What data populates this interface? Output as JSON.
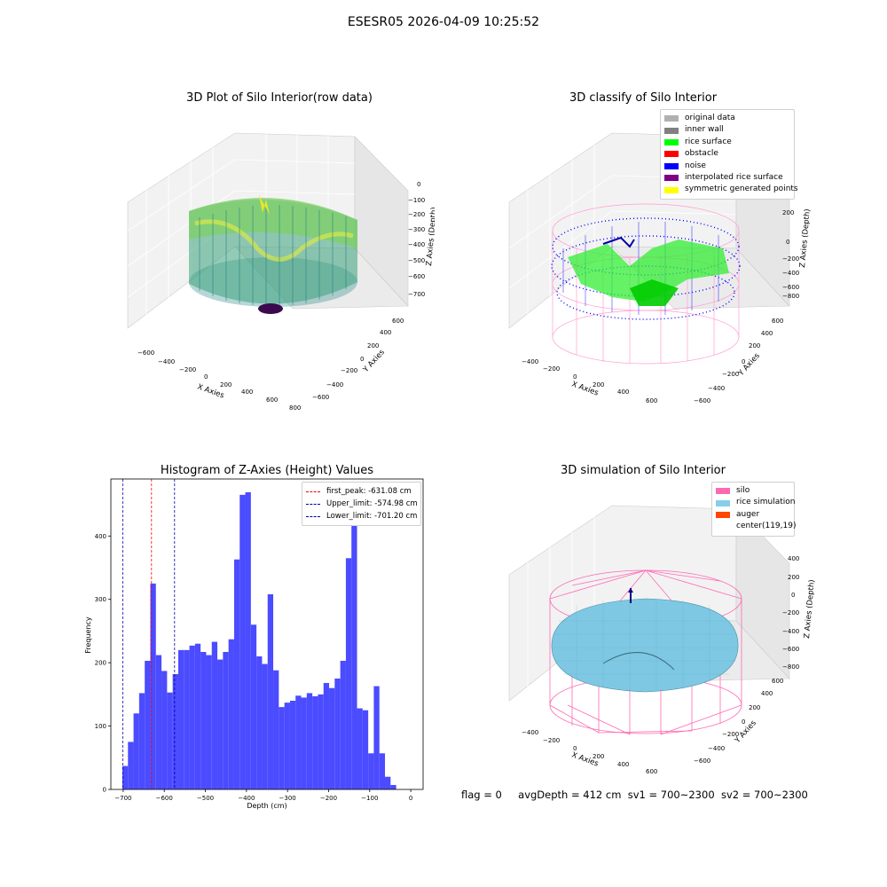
{
  "suptitle": "ESESR05 2026-04-09 10:25:52",
  "panels": {
    "raw": {
      "title": "3D Plot of Silo Interior(row data)",
      "x_label": "X Axies",
      "y_label": "Y Axies",
      "z_label": "Z Axies (Depth)",
      "x_ticks": [
        "−600",
        "−400",
        "−200",
        "0",
        "200",
        "400",
        "600",
        "800"
      ],
      "y_ticks": [
        "−600",
        "−400",
        "−200",
        "0",
        "200",
        "400",
        "600"
      ],
      "z_ticks": [
        "0",
        "−100",
        "−200",
        "−300",
        "−400",
        "−500",
        "−600",
        "−700"
      ]
    },
    "classify": {
      "title": "3D classify of Silo Interior",
      "x_label": "X Axies",
      "y_label": "Y Axies",
      "z_label": "Z Axies (Depth)",
      "x_ticks": [
        "−400",
        "−200",
        "0",
        "200",
        "400",
        "600"
      ],
      "y_ticks": [
        "−600",
        "−400",
        "−200",
        "0",
        "200",
        "400",
        "600"
      ],
      "z_ticks": [
        "200",
        "0",
        "−200",
        "−400",
        "−600",
        "−800"
      ],
      "legend": [
        {
          "label": "original data",
          "color": "#b0b0b0"
        },
        {
          "label": "inner wall",
          "color": "#808080"
        },
        {
          "label": "rice surface",
          "color": "#00ff00"
        },
        {
          "label": "obstacle",
          "color": "#ff0000"
        },
        {
          "label": "noise",
          "color": "#0000ff"
        },
        {
          "label": "interpolated rice surface",
          "color": "#800080"
        },
        {
          "label": "symmetric generated points",
          "color": "#ffff00"
        }
      ]
    },
    "histogram": {
      "title": "Histogram of Z-Axies (Height) Values",
      "x_label": "Depth (cm)",
      "y_label": "Frequency",
      "x_ticks": [
        "−700",
        "−600",
        "−500",
        "−400",
        "−300",
        "−200",
        "−100",
        "0"
      ],
      "y_ticks": [
        "0",
        "100",
        "200",
        "300",
        "400"
      ],
      "legend": [
        {
          "label": "first_peak: -631.08 cm",
          "color": "#ff0000"
        },
        {
          "label": "Upper_limit: -574.98 cm",
          "color": "#0000aa"
        },
        {
          "label": "Lower_limit: -701.20 cm",
          "color": "#0000aa"
        }
      ]
    },
    "simulation": {
      "title": "3D simulation of Silo Interior",
      "x_label": "X Axies",
      "y_label": "Y Axies",
      "z_label": "Z Axies (Depth)",
      "x_ticks": [
        "−400",
        "−200",
        "0",
        "200",
        "400",
        "600"
      ],
      "y_ticks": [
        "−600",
        "−400",
        "−200",
        "0",
        "200",
        "400",
        "600"
      ],
      "z_ticks": [
        "400",
        "200",
        "0",
        "−200",
        "−400",
        "−600",
        "−800"
      ],
      "legend": [
        {
          "label": "silo",
          "color": "#ff69b4"
        },
        {
          "label": "rice simulation",
          "color": "#87ceeb"
        },
        {
          "label": "auger",
          "color": "#ff4500"
        },
        {
          "label": "center(119,19)",
          "color": ""
        }
      ]
    }
  },
  "footer": {
    "flag": "flag = 0",
    "avg_depth": "avgDepth = 412 cm",
    "sv1": "sv1 = 700~2300",
    "sv2": "sv2 = 700~2300"
  },
  "chart_data": [
    {
      "type": "scatter",
      "subtype": "3d",
      "title": "3D Plot of Silo Interior(row data)",
      "xlabel": "X Axies",
      "ylabel": "Y Axies",
      "zlabel": "Z Axies (Depth)",
      "xlim": [
        -650,
        800
      ],
      "ylim": [
        -650,
        650
      ],
      "zlim": [
        -750,
        0
      ]
    },
    {
      "type": "scatter",
      "subtype": "3d",
      "title": "3D classify of Silo Interior",
      "xlabel": "X Axies",
      "ylabel": "Y Axies",
      "zlabel": "Z Axies (Depth)",
      "series": [
        {
          "name": "original data"
        },
        {
          "name": "inner wall"
        },
        {
          "name": "rice surface"
        },
        {
          "name": "obstacle"
        },
        {
          "name": "noise"
        },
        {
          "name": "interpolated rice surface"
        },
        {
          "name": "symmetric generated points"
        }
      ]
    },
    {
      "type": "bar",
      "subtype": "histogram",
      "title": "Histogram of Z-Axies (Height) Values",
      "xlabel": "Depth (cm)",
      "ylabel": "Frequency",
      "xlim": [
        -730,
        30
      ],
      "ylim": [
        0,
        490
      ],
      "bin_start": -702,
      "bin_width": 13.6,
      "values": [
        37,
        75,
        120,
        152,
        203,
        325,
        212,
        187,
        153,
        182,
        220,
        220,
        227,
        230,
        217,
        212,
        233,
        205,
        217,
        237,
        363,
        465,
        469,
        260,
        210,
        198,
        308,
        188,
        130,
        137,
        140,
        148,
        145,
        152,
        147,
        150,
        168,
        160,
        175,
        203,
        365,
        430,
        128,
        125,
        57,
        163,
        57,
        20,
        7
      ],
      "vlines": [
        {
          "name": "first_peak",
          "x": -631.08,
          "color": "#ff0000"
        },
        {
          "name": "Upper_limit",
          "x": -574.98,
          "color": "#0000aa"
        },
        {
          "name": "Lower_limit",
          "x": -701.2,
          "color": "#0000aa"
        }
      ],
      "legend_position": "top-right"
    },
    {
      "type": "surface",
      "subtype": "3d",
      "title": "3D simulation of Silo Interior",
      "xlabel": "X Axies",
      "ylabel": "Y Axies",
      "zlabel": "Z Axies (Depth)",
      "series": [
        {
          "name": "silo"
        },
        {
          "name": "rice simulation"
        },
        {
          "name": "auger"
        },
        {
          "name": "center(119,19)"
        }
      ]
    }
  ]
}
